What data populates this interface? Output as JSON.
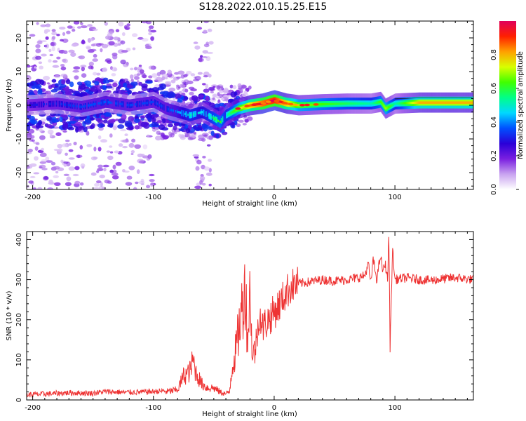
{
  "figure_title": "S128.2022.010.15.25.E15",
  "chart_data": [
    {
      "type": "heatmap",
      "name": "spectrogram",
      "xlabel": "Height of straight line (km)",
      "ylabel": "Frequency (Hz)",
      "xlim": [
        -205,
        165
      ],
      "ylim": [
        -25,
        25
      ],
      "xticks": [
        -200,
        -100,
        0,
        100
      ],
      "yticks": [
        -20,
        -10,
        0,
        10,
        20
      ],
      "colorbar": {
        "label": "Normalized spectral amplitude",
        "range": [
          0,
          1
        ],
        "ticks": [
          0.0,
          0.2,
          0.4,
          0.6,
          0.8
        ],
        "tick_labels": [
          "0.0",
          "0.2",
          "0.4",
          "0.6",
          "0.8"
        ],
        "colormap": [
          "#ffffff",
          "#c9a3f0",
          "#7a1fe0",
          "#2a00d8",
          "#0050ff",
          "#00d8ff",
          "#00ff88",
          "#40ff00",
          "#d8ff00",
          "#ffa000",
          "#ff2000",
          "#e0005a"
        ]
      },
      "ridge": {
        "x": [
          -205,
          -180,
          -160,
          -140,
          -120,
          -100,
          -90,
          -80,
          -70,
          -60,
          -50,
          -45,
          -40,
          -30,
          -20,
          -10,
          0,
          10,
          20,
          40,
          60,
          80,
          88,
          92,
          100,
          120,
          140,
          165
        ],
        "y": [
          0,
          0.5,
          -0.5,
          1,
          0,
          1,
          -1,
          -2,
          -3,
          -2,
          -4,
          -5,
          -3,
          -1,
          0,
          0.5,
          1.5,
          0.5,
          0,
          0.3,
          0.5,
          0.5,
          1,
          -1,
          0.5,
          0.8,
          0.8,
          0.8
        ],
        "amplitude": [
          0.25,
          0.28,
          0.3,
          0.32,
          0.3,
          0.3,
          0.3,
          0.35,
          0.45,
          0.4,
          0.5,
          0.55,
          0.45,
          0.6,
          0.75,
          0.85,
          0.9,
          0.75,
          0.6,
          0.55,
          0.5,
          0.45,
          0.55,
          0.6,
          0.45,
          0.7,
          0.7,
          0.7
        ]
      }
    },
    {
      "type": "line",
      "name": "snr",
      "xlabel": "Height of straight line (km)",
      "ylabel": "SNR (10 * v/v)",
      "xlim": [
        -205,
        165
      ],
      "ylim": [
        0,
        420
      ],
      "xticks": [
        -200,
        -100,
        0,
        100
      ],
      "yticks": [
        0,
        100,
        200,
        300,
        400
      ],
      "color": "#ee3333",
      "series": [
        {
          "x": [
            -205,
            -190,
            -170,
            -150,
            -140,
            -120,
            -100,
            -90,
            -80,
            -75,
            -70,
            -67,
            -65,
            -60,
            -55,
            -50,
            -45,
            -40,
            -37,
            -35,
            -32,
            -30,
            -28,
            -26,
            -24,
            -22,
            -20,
            -18,
            -15,
            -12,
            -10,
            -5,
            0,
            5,
            10,
            15,
            20,
            30,
            40,
            50,
            60,
            70,
            75,
            78,
            80,
            82,
            85,
            88,
            90,
            92,
            94,
            95,
            96,
            97,
            98,
            100,
            110,
            120,
            130,
            140,
            150,
            165
          ],
          "y": [
            10,
            12,
            15,
            14,
            18,
            16,
            18,
            20,
            25,
            60,
            70,
            100,
            70,
            40,
            30,
            30,
            20,
            15,
            20,
            80,
            120,
            160,
            200,
            240,
            290,
            150,
            270,
            100,
            140,
            220,
            180,
            200,
            220,
            240,
            270,
            285,
            290,
            295,
            300,
            297,
            300,
            305,
            310,
            340,
            290,
            350,
            300,
            360,
            320,
            340,
            300,
            420,
            130,
            250,
            380,
            300,
            305,
            300,
            298,
            302,
            305,
            300
          ]
        }
      ]
    }
  ]
}
